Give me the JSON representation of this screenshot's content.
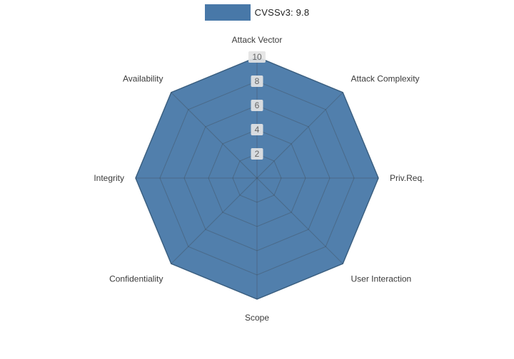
{
  "legend": {
    "label": "CVSSv3: 9.8"
  },
  "chart_data": {
    "type": "radar",
    "title": "CVSSv3: 9.8",
    "categories": [
      "Attack Vector",
      "Attack Complexity",
      "Priv.Req.",
      "User Interaction",
      "Scope",
      "Confidentiality",
      "Integrity",
      "Availability"
    ],
    "series": [
      {
        "name": "CVSSv3: 9.8",
        "values": [
          10,
          10,
          10,
          10,
          10,
          10,
          10,
          10
        ]
      }
    ],
    "ticks": [
      2,
      4,
      6,
      8,
      10
    ],
    "rmax": 10,
    "grid": true,
    "legend_position": "top",
    "colors": {
      "fill": "#4878a8",
      "stroke": "#3d6b95",
      "grid": "rgba(60,60,60,0.30)",
      "tick_box": "#e4e4e4",
      "tick_text": "#666666",
      "label": "#3a3a3a"
    }
  }
}
